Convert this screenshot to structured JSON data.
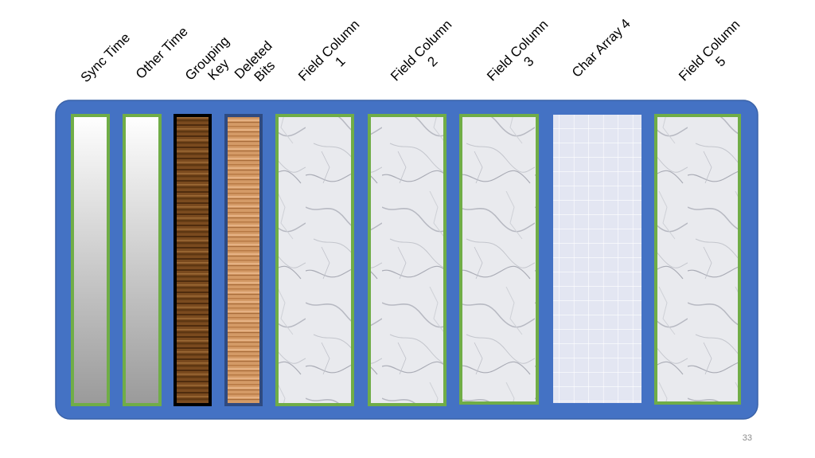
{
  "columns": [
    {
      "label": [
        "Sync Time"
      ]
    },
    {
      "label": [
        "Other Time"
      ]
    },
    {
      "label": [
        "Grouping",
        "Key"
      ]
    },
    {
      "label": [
        "Deleted",
        "Bits"
      ]
    },
    {
      "label": [
        "Field Column",
        "1"
      ]
    },
    {
      "label": [
        "Field Column",
        "2"
      ]
    },
    {
      "label": [
        "Field Column",
        "3"
      ]
    },
    {
      "label": [
        "Char Array 4"
      ]
    },
    {
      "label": [
        "Field Column",
        "5"
      ]
    }
  ],
  "page_number": "33"
}
